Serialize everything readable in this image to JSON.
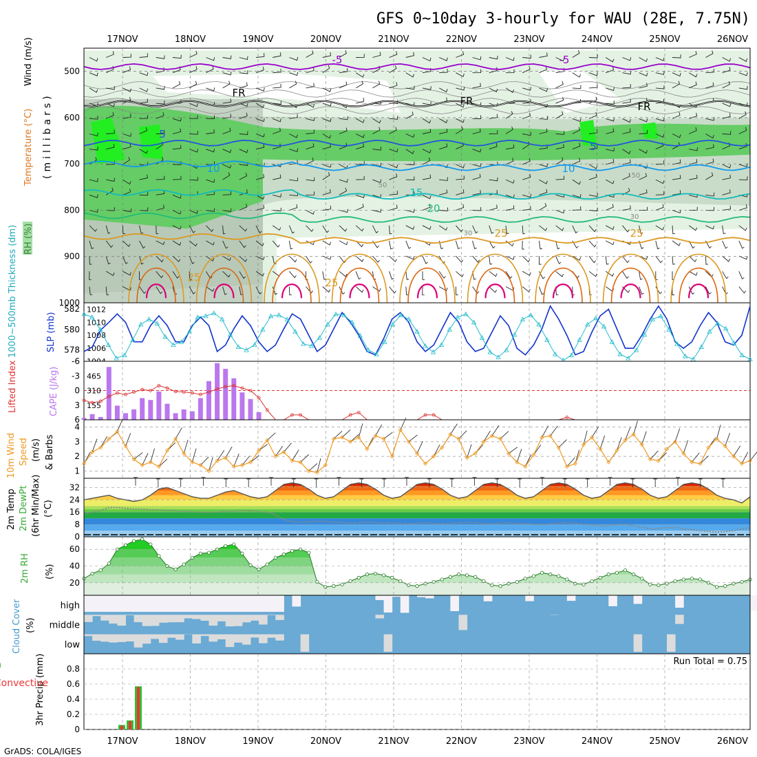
{
  "title": "GFS 0~10day 3-hourly for WAU (28E, 7.75N)",
  "credit": "GrADS: COLA/IGES",
  "date_labels": [
    "17NOV",
    "18NOV",
    "19NOV",
    "20NOV",
    "21NOV",
    "22NOV",
    "23NOV",
    "24NOV",
    "25NOV",
    "26NOV"
  ],
  "colors": {
    "rh_light": "#e4f2e4",
    "rh_mid": "#c9dcc9",
    "rh_dark": "#aebdae",
    "rh_green": "#66cc66",
    "rh_bright": "#22ee22",
    "t_minus5": "#9900cc",
    "t_fr": "#000000",
    "t_5": "#2255dd",
    "t_10": "#1199ee",
    "t_15": "#11bbbb",
    "t_20": "#22bb77",
    "t_25": "#dd9922",
    "t_30": "#dd6611",
    "t_35": "#dd0077",
    "slp": "#1133cc",
    "thick": "#22bbcc",
    "cape": "#bb77ee",
    "li": "#dd3333",
    "wind": "#ee9922",
    "rh2m": "#33bb33",
    "cloud": "#6aaad4",
    "precip_total": "#33bb33",
    "precip_conv": "#ee3333"
  },
  "chart_data": [
    {
      "type": "line",
      "panel": "upper-air cross section",
      "y_label_parts": [
        "RH (%)",
        "Temperature (°C)",
        "Wind (m/s)",
        "(millibars)"
      ],
      "ylim": [
        1000,
        450
      ],
      "yticks": [
        500,
        600,
        700,
        800,
        900,
        1000
      ],
      "contour_labels": [
        "-5",
        "-5",
        "FR",
        "FR",
        "FR",
        "5",
        "5",
        "10",
        "10",
        "15",
        "20",
        "25",
        "25",
        "25",
        "25",
        "30",
        "30",
        "50",
        "50"
      ],
      "series": [
        {
          "name": "-5",
          "level_mb": 490
        },
        {
          "name": "FR",
          "level_mb": 570
        },
        {
          "name": "5",
          "level_mb": 655
        },
        {
          "name": "10",
          "level_mb": 708
        },
        {
          "name": "15",
          "level_mb": 770
        },
        {
          "name": "20",
          "level_mb": 820
        },
        {
          "name": "25",
          "level_mb": 865
        }
      ]
    },
    {
      "type": "line",
      "panel": "slp-thickness",
      "y_label_left": "1000~500mb Thickness (dm)",
      "y_label_right": "SLP (mb)",
      "yticks_left": [
        578,
        580,
        582
      ],
      "yticks_right": [
        1004,
        1006,
        1008,
        1010,
        1012
      ],
      "ylim_right": [
        1004,
        1013
      ],
      "ylim_left": [
        576.9,
        582.6
      ],
      "series": [
        {
          "name": "SLP (mb)",
          "values": [
            1005.5,
            1006.2,
            1008.8,
            1010.0,
            1011.3,
            1010.0,
            1007.0,
            1007.0,
            1009.5,
            1011.0,
            1009.5,
            1007.0,
            1007.0,
            1009.5,
            1010.8,
            1009.5,
            1005.5,
            1006.5,
            1009.0,
            1011.0,
            1009.5,
            1007.0,
            1005.5,
            1006.5,
            1009.0,
            1011.3,
            1010.5,
            1008.0,
            1005.5,
            1006.5,
            1009.0,
            1011.5,
            1010.0,
            1008.0,
            1005.5,
            1005.0,
            1007.5,
            1010.5,
            1011.5,
            1010.0,
            1007.0,
            1005.5,
            1006.5,
            1009.0,
            1011.5,
            1010.0,
            1007.0,
            1005.5,
            1006.0,
            1008.5,
            1011.0,
            1009.5,
            1006.0,
            1005.0,
            1006.5,
            1009.0,
            1012.5,
            1010.5,
            1008.0,
            1005.0,
            1005.5,
            1008.5,
            1011.0,
            1012.0,
            1009.0,
            1006.0,
            1006.0,
            1008.0,
            1010.5,
            1012.5,
            1010.5,
            1007.0,
            1006.0,
            1007.0,
            1009.5,
            1011.5,
            1010.0,
            1007.0,
            1006.5,
            1008.0,
            1012.5
          ]
        },
        {
          "name": "Thickness (dm)",
          "values": [
            581.5,
            581.2,
            580.0,
            578.5,
            577.2,
            577.5,
            579.0,
            580.5,
            581.0,
            580.6,
            579.3,
            578.5,
            578.8,
            579.8,
            581.2,
            581.3,
            581.6,
            581.0,
            579.5,
            578.3,
            578.0,
            578.5,
            580.0,
            581.3,
            581.4,
            581.0,
            579.8,
            578.6,
            578.4,
            579.2,
            580.5,
            581.5,
            581.4,
            580.7,
            579.4,
            578.0,
            577.6,
            578.8,
            580.5,
            581.4,
            581.0,
            579.8,
            578.4,
            577.8,
            578.5,
            580.0,
            581.2,
            581.5,
            580.7,
            579.2,
            577.8,
            577.3,
            578.0,
            579.5,
            581.0,
            581.4,
            580.5,
            579.0,
            577.6,
            577.0,
            577.5,
            579.0,
            580.5,
            581.1,
            580.3,
            578.8,
            577.6,
            577.2,
            578.0,
            579.5,
            581.0,
            581.3,
            580.0,
            578.6,
            577.4,
            577.1,
            578.3,
            579.8,
            580.6,
            580.1,
            578.7,
            577.5,
            577.1
          ]
        }
      ]
    },
    {
      "type": "bar",
      "panel": "cape-lifted-index",
      "y_label_left": "Lifted Index",
      "y_label_right": "CAPE (J/kg)",
      "yticks_left": [
        "-6",
        "-3",
        "0",
        "3",
        "6"
      ],
      "yticks_right": [
        "465",
        "310",
        "155"
      ],
      "ylim_right": [
        0,
        620
      ],
      "ylim_left": [
        6,
        -6
      ],
      "series": [
        {
          "name": "CAPE (J/kg)",
          "values": [
            20,
            60,
            30,
            560,
            150,
            70,
            110,
            230,
            210,
            300,
            170,
            70,
            110,
            90,
            230,
            410,
            600,
            540,
            440,
            290,
            220,
            80
          ]
        },
        {
          "name": "Lifted Index",
          "values": [
            2,
            2.5,
            2.2,
            1.2,
            0.5,
            0.8,
            0.3,
            -0.2,
            0,
            -1,
            -0.5,
            0.2,
            0.3,
            0.5,
            0.8,
            0.3,
            -0.3,
            -0.8,
            -1.0,
            -0.5,
            0,
            1.5,
            4,
            6,
            6,
            5,
            5,
            6,
            6,
            6,
            6,
            6,
            5,
            4.5,
            6,
            6,
            6,
            6,
            6,
            6,
            6,
            5,
            5,
            6,
            6,
            6,
            6,
            6,
            6,
            6,
            6,
            6,
            6,
            6,
            6,
            6,
            6,
            6,
            5.5,
            6,
            6,
            6,
            6,
            6,
            6,
            6,
            6,
            6,
            6,
            6,
            6,
            6,
            6,
            6,
            6,
            6,
            6,
            6,
            6,
            6,
            6
          ]
        }
      ]
    },
    {
      "type": "line",
      "panel": "10m wind",
      "y_label_parts": [
        "10m Wind",
        "Speed",
        "(m/s)",
        "& Barbs"
      ],
      "yticks": [
        1,
        2,
        3,
        4
      ],
      "ylim": [
        0.5,
        4.5
      ],
      "series": [
        {
          "name": "10m Wind Speed",
          "values": [
            1.5,
            2.3,
            2.6,
            3.2,
            3.7,
            2.7,
            1.8,
            1.4,
            1.6,
            1.3,
            2.4,
            3.2,
            2.2,
            1.6,
            1.4,
            1.0,
            1.7,
            1.9,
            1.3,
            1.4,
            1.6,
            2.4,
            3.1,
            2.0,
            2.3,
            1.7,
            1.6,
            1.0,
            0.9,
            1.4,
            3.2,
            3.3,
            3.0,
            3.3,
            2.5,
            3.4,
            3.2,
            2.0,
            3.8,
            3.0,
            2.2,
            1.5,
            2.0,
            2.6,
            3.5,
            3.2,
            1.9,
            2.2,
            3.0,
            3.4,
            3.2,
            2.2,
            1.6,
            1.3,
            2.1,
            3.3,
            3.4,
            2.6,
            1.3,
            1.5,
            2.8,
            3.3,
            2.5,
            1.6,
            2.4,
            3.1,
            3.5,
            2.8,
            1.8,
            1.7,
            2.5,
            3.0,
            2.2,
            1.6,
            1.5,
            2.6,
            3.2,
            2.7,
            2.0,
            1.5,
            1.7
          ]
        }
      ]
    },
    {
      "type": "area",
      "panel": "2m temperature",
      "y_label_parts": [
        "2m Temp",
        "2m DewPt",
        "(6hr Min/Max)",
        "(°C)"
      ],
      "yticks": [
        0,
        8,
        16,
        24,
        32
      ],
      "ylim": [
        0,
        38
      ],
      "series": [
        {
          "name": "2m Temp",
          "values": [
            24,
            25,
            26,
            27,
            25,
            24,
            23,
            24,
            27,
            31,
            32,
            30,
            28,
            26,
            25,
            25,
            27,
            29,
            30,
            28,
            26,
            25,
            26,
            30,
            34,
            35,
            34,
            31,
            27,
            25,
            26,
            30,
            34,
            35,
            34,
            31,
            27,
            25,
            26,
            30,
            34,
            35,
            34,
            31,
            27,
            25,
            26,
            30,
            34,
            35,
            34,
            31,
            27,
            25,
            26,
            30,
            34,
            35,
            34,
            31,
            27,
            25,
            26,
            30,
            34,
            35,
            34,
            31,
            27,
            25,
            26,
            30,
            34,
            35,
            34,
            31,
            27,
            25,
            24,
            22,
            26
          ]
        },
        {
          "name": "2m DewPt",
          "values": [
            15,
            16,
            17,
            19,
            19,
            18.5,
            18,
            18,
            17.5,
            17.5,
            17,
            17,
            16.5,
            16.5,
            16,
            16,
            16,
            16.5,
            16.5,
            17,
            17,
            16.5,
            16,
            15,
            12,
            10,
            9.5,
            9.5,
            10,
            10,
            9.5,
            9.5,
            9,
            9,
            9.5,
            9.5,
            9,
            9,
            9,
            8.5,
            8.5,
            9,
            9,
            8.5,
            8.5,
            9,
            9,
            9.5,
            9,
            8.5,
            8.5,
            9,
            9,
            8.5,
            8.5,
            8,
            8,
            8.5,
            9,
            9,
            8.5,
            8,
            7.5,
            7,
            7.5,
            8,
            8,
            7,
            6,
            5,
            5.5,
            6,
            6,
            5,
            4.5,
            4,
            3.5,
            3,
            3.5,
            4,
            5,
            6
          ]
        }
      ]
    },
    {
      "type": "area",
      "panel": "2m relative humidity",
      "y_label_parts": [
        "2m RH",
        "(%)"
      ],
      "yticks": [
        20,
        40,
        60
      ],
      "ylim": [
        5,
        75
      ],
      "series": [
        {
          "name": "2m RH",
          "values": [
            25,
            31,
            35,
            43,
            60,
            65,
            70,
            72,
            66,
            52,
            40,
            36,
            42,
            50,
            55,
            56,
            60,
            64,
            66,
            55,
            41,
            36,
            42,
            50,
            54,
            58,
            60,
            56,
            21,
            15,
            16,
            18,
            22,
            26,
            30,
            31,
            29,
            26,
            22,
            17,
            16,
            19,
            21,
            24,
            27,
            30,
            29,
            27,
            22,
            17,
            16,
            19,
            21,
            25,
            28,
            32,
            30,
            28,
            24,
            19,
            18,
            22,
            26,
            30,
            32,
            35,
            30,
            25,
            18,
            17,
            19,
            22,
            24,
            25,
            24,
            20,
            15,
            16,
            19,
            21,
            24
          ]
        }
      ]
    },
    {
      "type": "bar",
      "panel": "cloud cover",
      "y_label_parts": [
        "Cloud Cover",
        "(%)"
      ],
      "rows": [
        "high",
        "middle",
        "low"
      ]
    },
    {
      "type": "bar",
      "panel": "3hr precipitation",
      "y_label_parts": [
        "3hr Precip (mm)",
        "Total / Rain",
        "Convective"
      ],
      "annotation": "Run Total = 0.75",
      "yticks": [
        "0",
        "0.2",
        "0.4",
        "0.6",
        "0.8"
      ],
      "ylim": [
        0,
        1
      ],
      "series": [
        {
          "name": "Total / Rain",
          "values": [
            0.06,
            0.12,
            0.57
          ]
        },
        {
          "name": "Convective",
          "values": [
            0.05,
            0.11,
            0.56
          ]
        }
      ]
    }
  ]
}
